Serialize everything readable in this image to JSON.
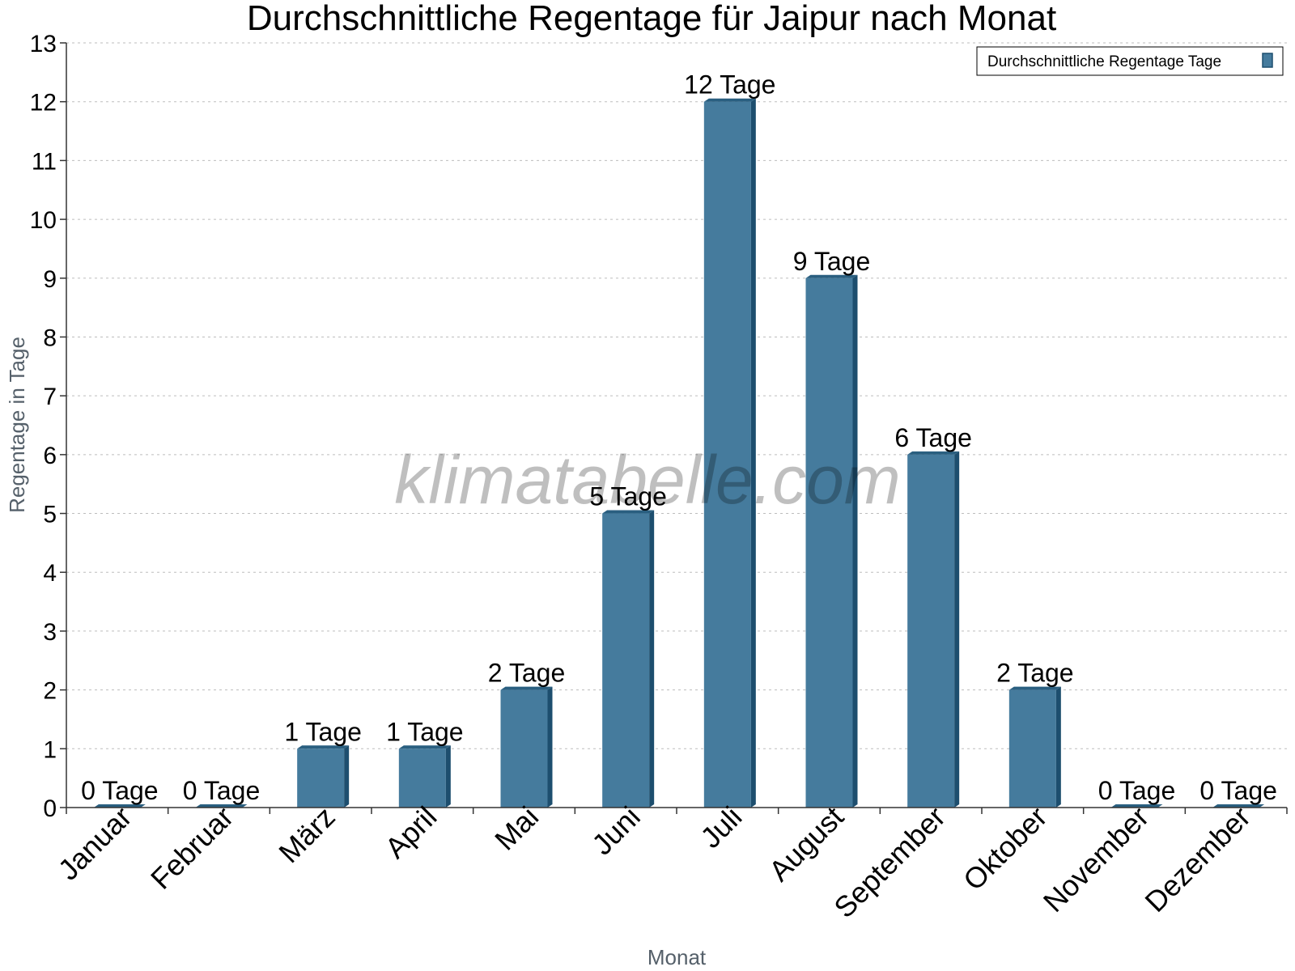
{
  "watermark": "klimatabelle.com",
  "colors": {
    "bar_front": "#457b9d",
    "bar_side": "#1d4e6e",
    "bar_top": "#2a5f80",
    "grid": "#bdbdbd",
    "axis": "#333333"
  },
  "chart_data": {
    "type": "bar",
    "title": "Durchschnittliche Regentage für Jaipur nach Monat",
    "xlabel": "Monat",
    "ylabel": "Regentage in Tage",
    "ylim": [
      0,
      13
    ],
    "yticks": [
      0,
      1,
      2,
      3,
      4,
      5,
      6,
      7,
      8,
      9,
      10,
      11,
      12,
      13
    ],
    "grid": true,
    "legend_position": "top-right",
    "categories": [
      "Januar",
      "Februar",
      "März",
      "April",
      "Mai",
      "Juni",
      "Juli",
      "August",
      "September",
      "Oktober",
      "November",
      "Dezember"
    ],
    "series": [
      {
        "name": "Durchschnittliche Regentage Tage",
        "values": [
          0,
          0,
          1,
          1,
          2,
          5,
          12,
          9,
          6,
          2,
          0,
          0
        ],
        "labels": [
          "0 Tage",
          "0 Tage",
          "1 Tage",
          "1 Tage",
          "2 Tage",
          "5 Tage",
          "12 Tage",
          "9 Tage",
          "6 Tage",
          "2 Tage",
          "0 Tage",
          "0 Tage"
        ]
      }
    ]
  }
}
